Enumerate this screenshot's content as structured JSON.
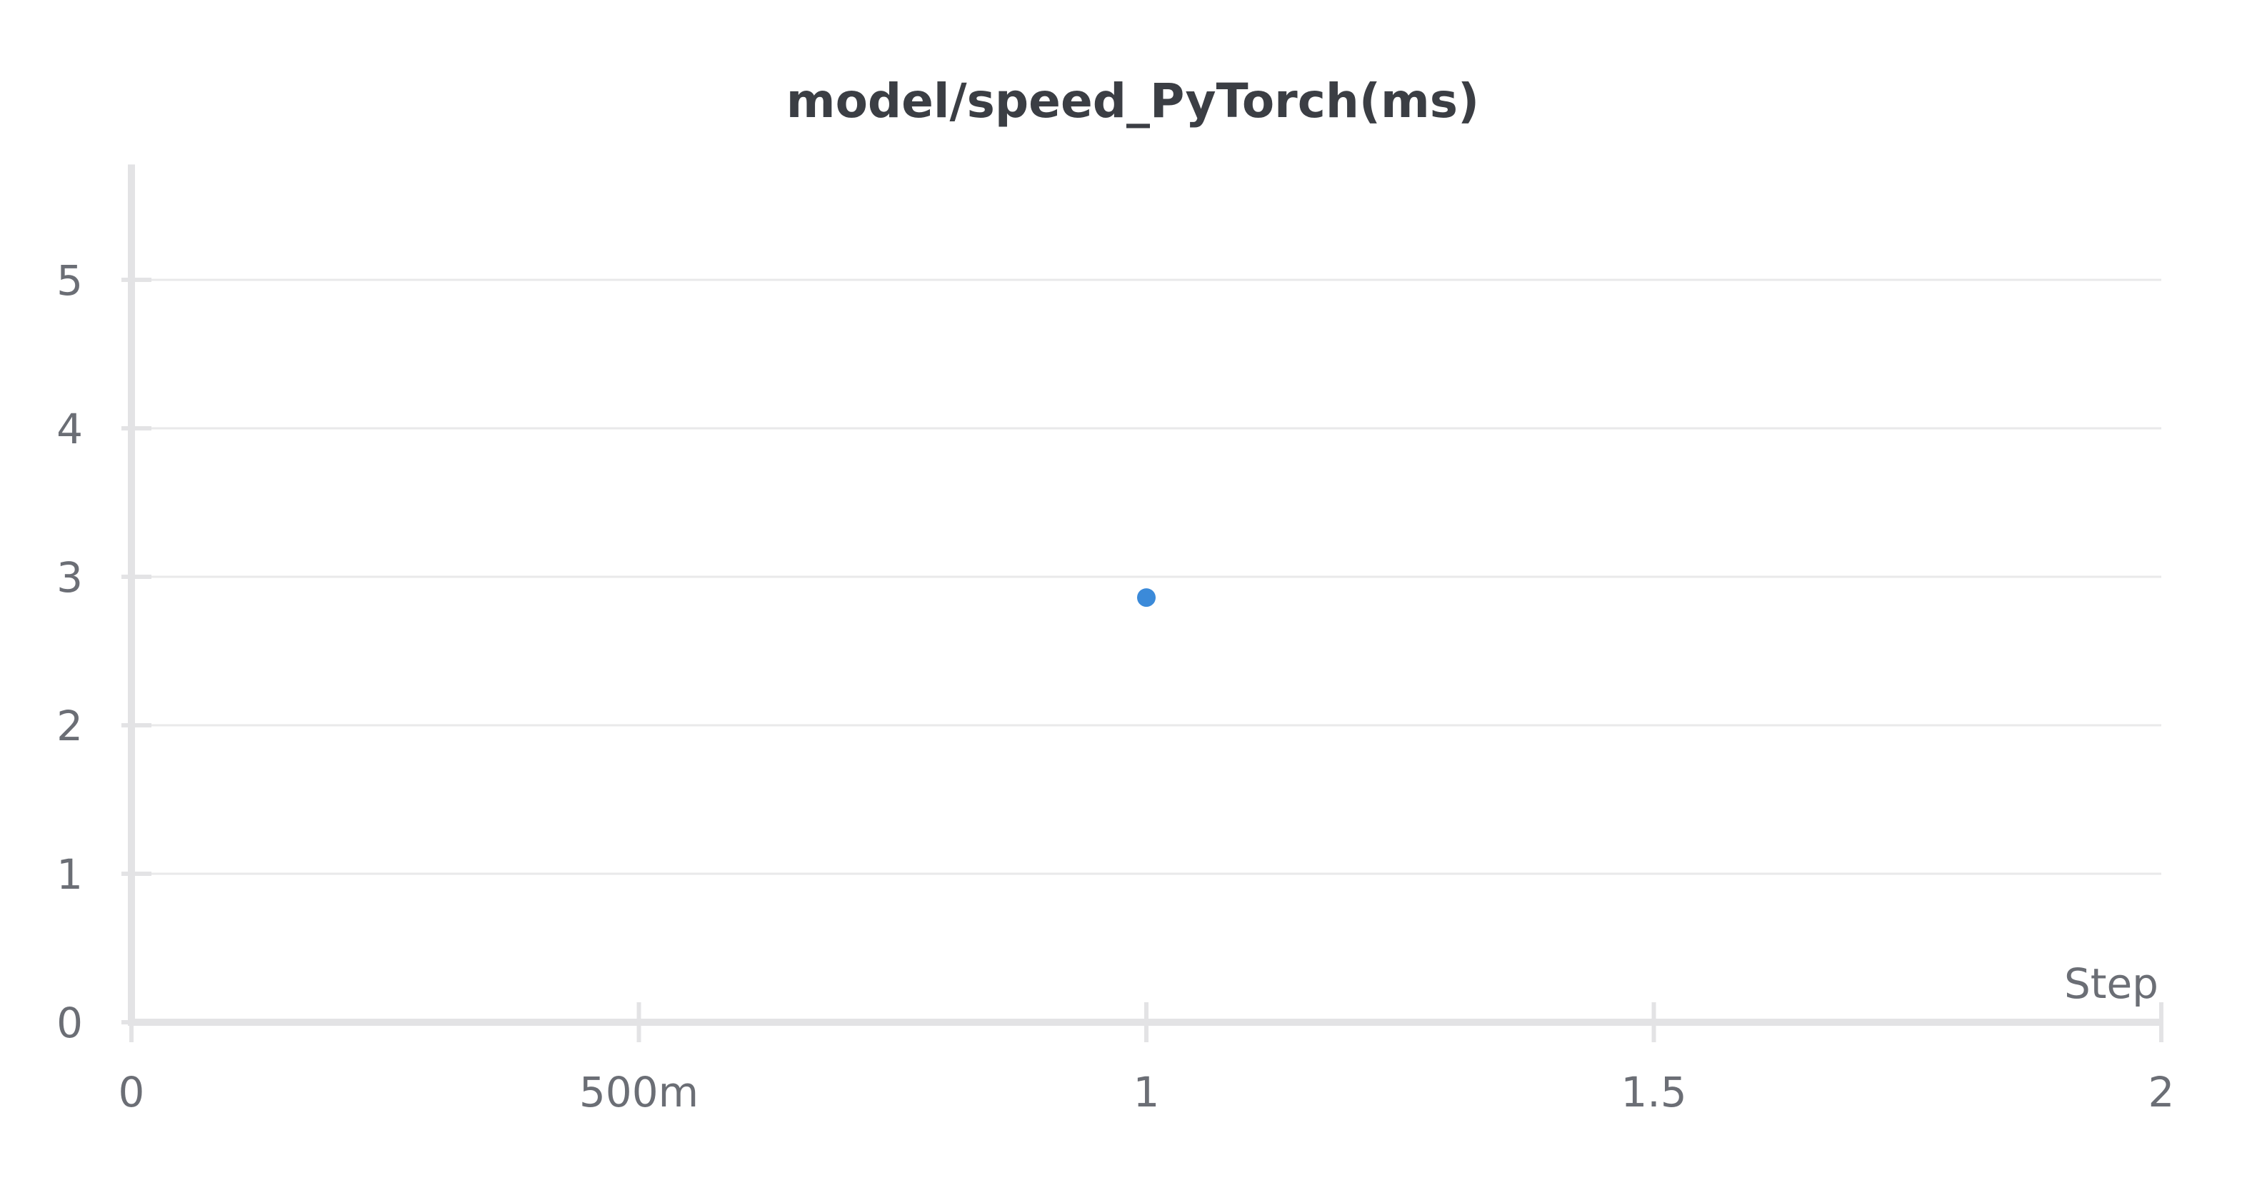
{
  "chart_data": {
    "type": "scatter",
    "title": "model/speed_PyTorch(ms)",
    "xlabel": "Step",
    "ylabel": "",
    "xlim": [
      0,
      2
    ],
    "ylim": [
      0,
      5.7
    ],
    "x_ticks": [
      {
        "value": 0,
        "label": "0"
      },
      {
        "value": 0.5,
        "label": "500m"
      },
      {
        "value": 1,
        "label": "1"
      },
      {
        "value": 1.5,
        "label": "1.5"
      },
      {
        "value": 2,
        "label": "2"
      }
    ],
    "y_ticks": [
      {
        "value": 0,
        "label": "0"
      },
      {
        "value": 1,
        "label": "1"
      },
      {
        "value": 2,
        "label": "2"
      },
      {
        "value": 3,
        "label": "3"
      },
      {
        "value": 4,
        "label": "4"
      },
      {
        "value": 5,
        "label": "5"
      }
    ],
    "grid": true,
    "series": [
      {
        "color": "#3b8ad9",
        "points": [
          {
            "x": 1,
            "y": 2.86
          }
        ]
      }
    ]
  }
}
